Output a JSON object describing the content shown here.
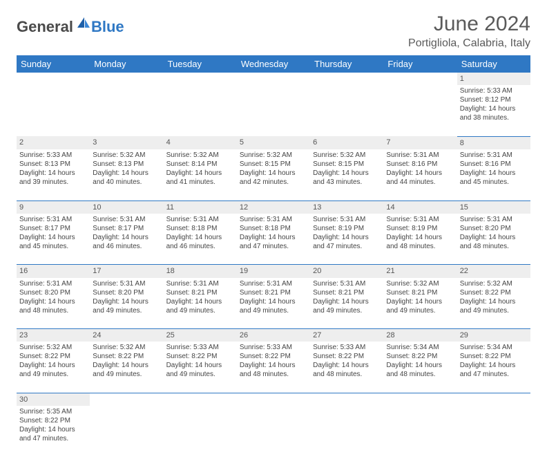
{
  "brand": {
    "part1": "General",
    "part2": "Blue"
  },
  "header": {
    "month": "June 2024",
    "location": "Portigliola, Calabria, Italy"
  },
  "colors": {
    "accent": "#2f78c4",
    "header_text": "#5a5a5a",
    "grid_bg": "#eeeeee"
  },
  "weekdays": [
    "Sunday",
    "Monday",
    "Tuesday",
    "Wednesday",
    "Thursday",
    "Friday",
    "Saturday"
  ],
  "weeks": [
    {
      "nums": [
        "",
        "",
        "",
        "",
        "",
        "",
        "1"
      ],
      "cells": [
        null,
        null,
        null,
        null,
        null,
        null,
        {
          "sunrise": "Sunrise: 5:33 AM",
          "sunset": "Sunset: 8:12 PM",
          "day1": "Daylight: 14 hours",
          "day2": "and 38 minutes."
        }
      ]
    },
    {
      "nums": [
        "2",
        "3",
        "4",
        "5",
        "6",
        "7",
        "8"
      ],
      "cells": [
        {
          "sunrise": "Sunrise: 5:33 AM",
          "sunset": "Sunset: 8:13 PM",
          "day1": "Daylight: 14 hours",
          "day2": "and 39 minutes."
        },
        {
          "sunrise": "Sunrise: 5:32 AM",
          "sunset": "Sunset: 8:13 PM",
          "day1": "Daylight: 14 hours",
          "day2": "and 40 minutes."
        },
        {
          "sunrise": "Sunrise: 5:32 AM",
          "sunset": "Sunset: 8:14 PM",
          "day1": "Daylight: 14 hours",
          "day2": "and 41 minutes."
        },
        {
          "sunrise": "Sunrise: 5:32 AM",
          "sunset": "Sunset: 8:15 PM",
          "day1": "Daylight: 14 hours",
          "day2": "and 42 minutes."
        },
        {
          "sunrise": "Sunrise: 5:32 AM",
          "sunset": "Sunset: 8:15 PM",
          "day1": "Daylight: 14 hours",
          "day2": "and 43 minutes."
        },
        {
          "sunrise": "Sunrise: 5:31 AM",
          "sunset": "Sunset: 8:16 PM",
          "day1": "Daylight: 14 hours",
          "day2": "and 44 minutes."
        },
        {
          "sunrise": "Sunrise: 5:31 AM",
          "sunset": "Sunset: 8:16 PM",
          "day1": "Daylight: 14 hours",
          "day2": "and 45 minutes."
        }
      ]
    },
    {
      "nums": [
        "9",
        "10",
        "11",
        "12",
        "13",
        "14",
        "15"
      ],
      "cells": [
        {
          "sunrise": "Sunrise: 5:31 AM",
          "sunset": "Sunset: 8:17 PM",
          "day1": "Daylight: 14 hours",
          "day2": "and 45 minutes."
        },
        {
          "sunrise": "Sunrise: 5:31 AM",
          "sunset": "Sunset: 8:17 PM",
          "day1": "Daylight: 14 hours",
          "day2": "and 46 minutes."
        },
        {
          "sunrise": "Sunrise: 5:31 AM",
          "sunset": "Sunset: 8:18 PM",
          "day1": "Daylight: 14 hours",
          "day2": "and 46 minutes."
        },
        {
          "sunrise": "Sunrise: 5:31 AM",
          "sunset": "Sunset: 8:18 PM",
          "day1": "Daylight: 14 hours",
          "day2": "and 47 minutes."
        },
        {
          "sunrise": "Sunrise: 5:31 AM",
          "sunset": "Sunset: 8:19 PM",
          "day1": "Daylight: 14 hours",
          "day2": "and 47 minutes."
        },
        {
          "sunrise": "Sunrise: 5:31 AM",
          "sunset": "Sunset: 8:19 PM",
          "day1": "Daylight: 14 hours",
          "day2": "and 48 minutes."
        },
        {
          "sunrise": "Sunrise: 5:31 AM",
          "sunset": "Sunset: 8:20 PM",
          "day1": "Daylight: 14 hours",
          "day2": "and 48 minutes."
        }
      ]
    },
    {
      "nums": [
        "16",
        "17",
        "18",
        "19",
        "20",
        "21",
        "22"
      ],
      "cells": [
        {
          "sunrise": "Sunrise: 5:31 AM",
          "sunset": "Sunset: 8:20 PM",
          "day1": "Daylight: 14 hours",
          "day2": "and 48 minutes."
        },
        {
          "sunrise": "Sunrise: 5:31 AM",
          "sunset": "Sunset: 8:20 PM",
          "day1": "Daylight: 14 hours",
          "day2": "and 49 minutes."
        },
        {
          "sunrise": "Sunrise: 5:31 AM",
          "sunset": "Sunset: 8:21 PM",
          "day1": "Daylight: 14 hours",
          "day2": "and 49 minutes."
        },
        {
          "sunrise": "Sunrise: 5:31 AM",
          "sunset": "Sunset: 8:21 PM",
          "day1": "Daylight: 14 hours",
          "day2": "and 49 minutes."
        },
        {
          "sunrise": "Sunrise: 5:31 AM",
          "sunset": "Sunset: 8:21 PM",
          "day1": "Daylight: 14 hours",
          "day2": "and 49 minutes."
        },
        {
          "sunrise": "Sunrise: 5:32 AM",
          "sunset": "Sunset: 8:21 PM",
          "day1": "Daylight: 14 hours",
          "day2": "and 49 minutes."
        },
        {
          "sunrise": "Sunrise: 5:32 AM",
          "sunset": "Sunset: 8:22 PM",
          "day1": "Daylight: 14 hours",
          "day2": "and 49 minutes."
        }
      ]
    },
    {
      "nums": [
        "23",
        "24",
        "25",
        "26",
        "27",
        "28",
        "29"
      ],
      "cells": [
        {
          "sunrise": "Sunrise: 5:32 AM",
          "sunset": "Sunset: 8:22 PM",
          "day1": "Daylight: 14 hours",
          "day2": "and 49 minutes."
        },
        {
          "sunrise": "Sunrise: 5:32 AM",
          "sunset": "Sunset: 8:22 PM",
          "day1": "Daylight: 14 hours",
          "day2": "and 49 minutes."
        },
        {
          "sunrise": "Sunrise: 5:33 AM",
          "sunset": "Sunset: 8:22 PM",
          "day1": "Daylight: 14 hours",
          "day2": "and 49 minutes."
        },
        {
          "sunrise": "Sunrise: 5:33 AM",
          "sunset": "Sunset: 8:22 PM",
          "day1": "Daylight: 14 hours",
          "day2": "and 48 minutes."
        },
        {
          "sunrise": "Sunrise: 5:33 AM",
          "sunset": "Sunset: 8:22 PM",
          "day1": "Daylight: 14 hours",
          "day2": "and 48 minutes."
        },
        {
          "sunrise": "Sunrise: 5:34 AM",
          "sunset": "Sunset: 8:22 PM",
          "day1": "Daylight: 14 hours",
          "day2": "and 48 minutes."
        },
        {
          "sunrise": "Sunrise: 5:34 AM",
          "sunset": "Sunset: 8:22 PM",
          "day1": "Daylight: 14 hours",
          "day2": "and 47 minutes."
        }
      ]
    },
    {
      "nums": [
        "30",
        "",
        "",
        "",
        "",
        "",
        ""
      ],
      "cells": [
        {
          "sunrise": "Sunrise: 5:35 AM",
          "sunset": "Sunset: 8:22 PM",
          "day1": "Daylight: 14 hours",
          "day2": "and 47 minutes."
        },
        null,
        null,
        null,
        null,
        null,
        null
      ]
    }
  ]
}
